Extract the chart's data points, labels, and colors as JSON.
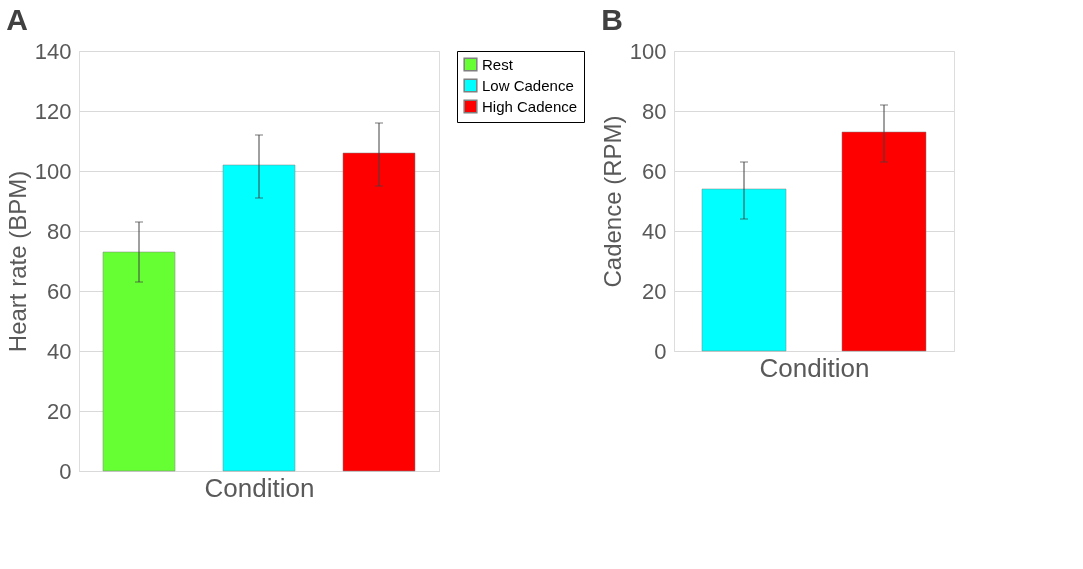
{
  "chart_data": [
    {
      "type": "bar",
      "title": "A",
      "xlabel": "Condition",
      "ylabel": "Heart rate (BPM)",
      "categories": [
        null,
        null,
        null
      ],
      "ylim": [
        0,
        140
      ],
      "yticks": [
        0,
        20,
        40,
        60,
        80,
        100,
        120,
        140
      ],
      "grid": "y",
      "legend": "right",
      "series": [
        {
          "name": "Rest",
          "color": "#66ff33",
          "values": [
            73,
            null,
            null
          ],
          "errors": [
            [
              63,
              83
            ],
            null,
            null
          ]
        },
        {
          "name": "Low Cadence",
          "color": "#00ffff",
          "values": [
            null,
            102,
            null
          ],
          "errors": [
            null,
            [
              91,
              112
            ],
            null
          ]
        },
        {
          "name": "High Cadence",
          "color": "#ff0000",
          "values": [
            null,
            null,
            106
          ],
          "errors": [
            null,
            null,
            [
              95,
              116
            ]
          ]
        }
      ]
    },
    {
      "type": "bar",
      "title": "B",
      "xlabel": "Condition",
      "ylabel": "Cadence (RPM)",
      "categories": [
        null,
        null
      ],
      "ylim": [
        0,
        100
      ],
      "yticks": [
        0,
        20,
        40,
        60,
        80,
        100
      ],
      "grid": "y",
      "legend": false,
      "series": [
        {
          "color": "#00ffff",
          "values": [
            54,
            null
          ],
          "errors": [
            [
              44,
              63
            ],
            null
          ]
        },
        {
          "color": "#ff0000",
          "values": [
            null,
            73
          ],
          "errors": [
            null,
            [
              63,
              82
            ]
          ]
        }
      ]
    }
  ]
}
